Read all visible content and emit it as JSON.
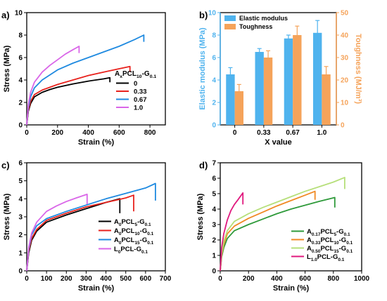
{
  "chart_data": [
    {
      "panel_label": "a)",
      "type": "line",
      "xlabel": "Strain (%)",
      "ylabel": "Stress (MPa)",
      "xlim": [
        0,
        900
      ],
      "ylim": [
        0,
        10
      ],
      "xticks": [
        0,
        200,
        400,
        600,
        800
      ],
      "yticks": [
        0,
        2,
        4,
        6,
        8,
        10
      ],
      "legend_title_parts": [
        "A",
        "x",
        "PCL",
        "10",
        "-G",
        "0.1"
      ],
      "legend_position": "right",
      "series": [
        {
          "name": "0",
          "color": "#000000",
          "x": [
            0,
            10,
            25,
            50,
            100,
            150,
            200,
            300,
            400,
            500,
            540,
            540
          ],
          "y": [
            0,
            1.2,
            1.9,
            2.5,
            2.9,
            3.15,
            3.35,
            3.65,
            3.9,
            4.1,
            4.2,
            3.8
          ]
        },
        {
          "name": "0.33",
          "color": "#e8221d",
          "x": [
            0,
            10,
            25,
            50,
            100,
            200,
            300,
            400,
            500,
            600,
            670,
            670
          ],
          "y": [
            0,
            1.3,
            2.1,
            2.7,
            3.1,
            3.6,
            4.0,
            4.4,
            4.7,
            5.0,
            5.2,
            4.7
          ]
        },
        {
          "name": "0.67",
          "color": "#1f8ae0",
          "x": [
            0,
            10,
            25,
            50,
            100,
            200,
            300,
            400,
            500,
            600,
            700,
            760,
            760
          ],
          "y": [
            0,
            1.5,
            2.5,
            3.3,
            4.0,
            4.9,
            5.5,
            6.0,
            6.5,
            7.0,
            7.6,
            8.0,
            7.4
          ]
        },
        {
          "name": "1.0",
          "color": "#d966e8",
          "x": [
            0,
            10,
            25,
            50,
            100,
            150,
            200,
            250,
            300,
            340,
            340
          ],
          "y": [
            0,
            1.8,
            2.9,
            3.8,
            4.7,
            5.3,
            5.8,
            6.3,
            6.7,
            7.0,
            6.4
          ]
        }
      ]
    },
    {
      "panel_label": "b)",
      "type": "bar",
      "xlabel": "X value",
      "ylabel_left": "Elastic modulus (MPa)",
      "ylabel_right": "Toughness (MJ/m³)",
      "categories": [
        "0",
        "0.33",
        "0.67",
        "1.0"
      ],
      "ylim_left": [
        0,
        10
      ],
      "ylim_right": [
        0,
        50
      ],
      "yticks_left": [
        0,
        2,
        4,
        6,
        8,
        10
      ],
      "yticks_right": [
        0,
        10,
        20,
        30,
        40,
        50
      ],
      "legend_position": "top-left",
      "series": [
        {
          "name": "Elastic modulus",
          "color": "#4fb3ee",
          "axis": "left",
          "values": [
            4.5,
            6.5,
            7.7,
            8.2
          ],
          "errors": [
            0.6,
            0.3,
            0.3,
            1.1
          ]
        },
        {
          "name": "Toughness",
          "color": "#f5a35a",
          "axis": "right",
          "values": [
            15,
            30,
            40,
            22.5
          ],
          "errors": [
            3,
            3,
            4,
            3.5
          ]
        }
      ]
    },
    {
      "panel_label": "c)",
      "type": "line",
      "xlabel": "Strain (%)",
      "ylabel": "Stress (MPa)",
      "xlim": [
        0,
        700
      ],
      "ylim": [
        0,
        6
      ],
      "xticks": [
        0,
        100,
        200,
        300,
        400,
        500,
        600,
        700
      ],
      "yticks": [
        0,
        1,
        2,
        3,
        4,
        5,
        6
      ],
      "legend_position": "bottom-right",
      "series": [
        {
          "name_parts": [
            "A",
            "0",
            "PCL",
            "5",
            "-G",
            "0.1"
          ],
          "color": "#000000",
          "x": [
            0,
            10,
            25,
            50,
            100,
            200,
            300,
            400,
            470,
            470
          ],
          "y": [
            0,
            1.0,
            1.7,
            2.2,
            2.7,
            3.1,
            3.45,
            3.8,
            4.0,
            3.2
          ]
        },
        {
          "name_parts": [
            "A",
            "0",
            "PCL",
            "10",
            "-G",
            "0.1"
          ],
          "color": "#e8221d",
          "x": [
            0,
            10,
            25,
            50,
            100,
            200,
            300,
            400,
            500,
            540,
            540
          ],
          "y": [
            0,
            1.1,
            1.8,
            2.3,
            2.8,
            3.2,
            3.55,
            3.8,
            4.05,
            4.2,
            3.3
          ]
        },
        {
          "name_parts": [
            "A",
            "0",
            "PCL",
            "15",
            "-G",
            "0.1"
          ],
          "color": "#1f8ae0",
          "x": [
            0,
            10,
            25,
            50,
            100,
            200,
            300,
            400,
            500,
            600,
            650,
            650
          ],
          "y": [
            0,
            1.2,
            2.0,
            2.5,
            2.9,
            3.3,
            3.65,
            4.0,
            4.3,
            4.6,
            4.85,
            3.9
          ]
        },
        {
          "name_parts": [
            "L",
            "0",
            "PCL-G",
            "0.1"
          ],
          "color": "#d966e8",
          "x": [
            0,
            10,
            25,
            50,
            100,
            150,
            200,
            250,
            305,
            305
          ],
          "y": [
            0,
            1.3,
            2.1,
            2.7,
            3.3,
            3.6,
            3.85,
            4.05,
            4.25,
            3.7
          ]
        }
      ]
    },
    {
      "panel_label": "d)",
      "type": "line",
      "xlabel": "Strain (%)",
      "ylabel": "Stress (MPa)",
      "xlim": [
        0,
        1000
      ],
      "ylim": [
        0,
        7
      ],
      "xticks": [
        0,
        200,
        400,
        600,
        800,
        1000
      ],
      "yticks": [
        0,
        1,
        2,
        3,
        4,
        5,
        6,
        7
      ],
      "legend_position": "bottom-right",
      "series": [
        {
          "name_parts": [
            "A",
            "0.17",
            "PCL",
            "5",
            "-G",
            "0.1"
          ],
          "color": "#2e9a3a",
          "x": [
            0,
            10,
            25,
            50,
            100,
            200,
            300,
            400,
            500,
            600,
            700,
            810,
            810
          ],
          "y": [
            0,
            0.9,
            1.5,
            2.1,
            2.6,
            3.0,
            3.35,
            3.7,
            4.0,
            4.25,
            4.5,
            4.75,
            4.1
          ]
        },
        {
          "name_parts": [
            "A",
            "0.33",
            "PCL",
            "10",
            "-G",
            "0.1"
          ],
          "color": "#f08a24",
          "x": [
            0,
            10,
            25,
            50,
            100,
            200,
            300,
            400,
            500,
            600,
            670,
            670
          ],
          "y": [
            0,
            1.0,
            1.7,
            2.4,
            2.9,
            3.4,
            3.8,
            4.2,
            4.55,
            4.9,
            5.15,
            4.6
          ]
        },
        {
          "name_parts": [
            "A",
            "0.50",
            "PCL",
            "15",
            "-G",
            "0.1"
          ],
          "color": "#b6df7a",
          "x": [
            0,
            10,
            25,
            50,
            100,
            200,
            300,
            400,
            500,
            600,
            700,
            800,
            880,
            880
          ],
          "y": [
            0,
            1.1,
            1.9,
            2.6,
            3.2,
            3.7,
            4.1,
            4.45,
            4.8,
            5.15,
            5.45,
            5.75,
            6.05,
            5.3
          ]
        },
        {
          "name_parts": [
            "L",
            "1.0",
            "PCL-G",
            "0.1"
          ],
          "color": "#e0197e",
          "x": [
            0,
            10,
            25,
            50,
            75,
            100,
            125,
            160,
            160
          ],
          "y": [
            0,
            1.5,
            2.4,
            3.3,
            3.9,
            4.3,
            4.6,
            5.05,
            4.3
          ]
        }
      ]
    }
  ]
}
